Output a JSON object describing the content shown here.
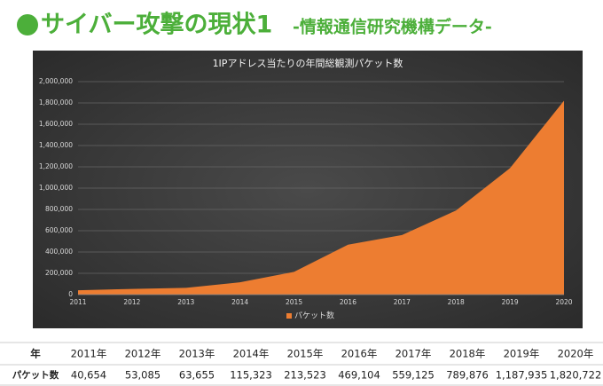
{
  "heading": {
    "title": "サイバー攻撃の現状1",
    "subtitle": "-情報通信研究機構データ-"
  },
  "chart_data": {
    "type": "area",
    "title": "1IPアドレス当たりの年間総観測パケット数",
    "x": [
      2011,
      2012,
      2013,
      2014,
      2015,
      2016,
      2017,
      2018,
      2019,
      2020
    ],
    "xlim": [
      2011,
      2020
    ],
    "xticks": [
      2011,
      2012,
      2013,
      2014,
      2015,
      2016,
      2017,
      2018,
      2019,
      2020
    ],
    "series": [
      {
        "name": "パケット数",
        "color": "#ed7d31",
        "values": [
          40654,
          53085,
          63655,
          115323,
          213523,
          469104,
          559125,
          789876,
          1187935,
          1820722
        ]
      }
    ],
    "ylim": [
      0,
      2000000
    ],
    "yticks": [
      {
        "value": 0,
        "label": "0"
      },
      {
        "value": 200000,
        "label": "200,000"
      },
      {
        "value": 400000,
        "label": "400,000"
      },
      {
        "value": 600000,
        "label": "600,000"
      },
      {
        "value": 800000,
        "label": "800,000"
      },
      {
        "value": 1000000,
        "label": "1,000,000"
      },
      {
        "value": 1200000,
        "label": "1,200,000"
      },
      {
        "value": 1400000,
        "label": "1,400,000"
      },
      {
        "value": 1600000,
        "label": "1,600,000"
      },
      {
        "value": 1800000,
        "label": "1,800,000"
      },
      {
        "value": 2000000,
        "label": "2,000,000"
      }
    ],
    "grid": true,
    "legend": "bottom"
  },
  "table": {
    "header": [
      "年",
      "2011年",
      "2012年",
      "2013年",
      "2014年",
      "2015年",
      "2016年",
      "2017年",
      "2018年",
      "2019年",
      "2020年"
    ],
    "rows": [
      [
        "パケット数",
        "40,654",
        "53,085",
        "63,655",
        "115,323",
        "213,523",
        "469,104",
        "559,125",
        "789,876",
        "1,187,935",
        "1,820,722"
      ]
    ]
  }
}
